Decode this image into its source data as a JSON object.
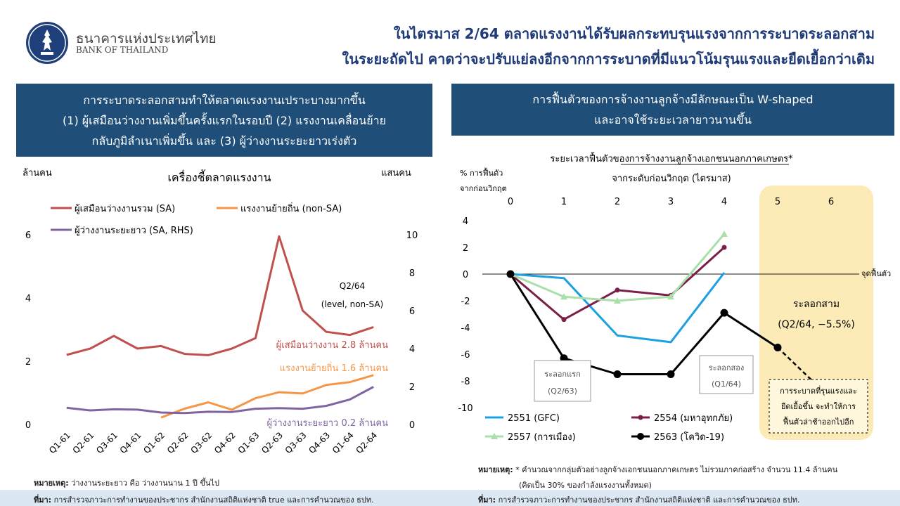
{
  "header": {
    "org_thai": "ธนาคารแห่งประเทศไทย",
    "org_en": "BANK OF THAILAND",
    "headline_line1": "ในไตรมาส 2/64 ตลาดแรงงานได้รับผลกระทบรุนแรงจากการระบาดระลอกสาม",
    "headline_line2": "ในระยะถัดไป คาดว่าจะปรับแย่ลงอีกจากการระบาดที่มีแนวโน้มรุนแรงและยืดเยื้อกว่าเดิม"
  },
  "left_banner": {
    "line1": "การระบาดระลอกสามทำให้ตลาดแรงงานเปราะบางมากขึ้น",
    "line2": "(1) ผู้เสมือนว่างงานเพิ่มขึ้นครั้งแรกในรอบปี (2) แรงงานเคลื่อนย้าย",
    "line3": "กลับภูมิลำเนาเพิ่มขึ้น และ (3) ผู้ว่างงานระยะยาวเร่งตัว"
  },
  "right_banner": {
    "line1": "การฟื้นตัวของการจ้างงานลูกจ้างมีลักษณะเป็น W-shaped",
    "line2": "และอาจใช้ระยะเวลายาวนานขึ้น"
  },
  "colors": {
    "navy": "#1f4e79",
    "headline": "#1e3a78",
    "red_series": "#c0504d",
    "orange_series": "#f79646",
    "purple_series": "#8064a2",
    "gfc": "#1ba1e2",
    "flood": "#7b1e48",
    "politics": "#a9dfa9",
    "covid": "#000000",
    "forecast_zone": "#fcebb6"
  },
  "chart_data": [
    {
      "type": "line",
      "title": "เครื่องชี้ตลาดแรงงาน",
      "ylabel_left": "ล้านคน",
      "ylabel_right": "แสนคน",
      "ylim": [
        0,
        6
      ],
      "ylim_right": [
        0,
        10
      ],
      "yticks_left": [
        0,
        2,
        4,
        6
      ],
      "yticks_right": [
        0,
        2,
        4,
        6,
        8,
        10
      ],
      "categories": [
        "Q1-61",
        "Q2-61",
        "Q3-61",
        "Q4-61",
        "Q1-62",
        "Q2-62",
        "Q3-62",
        "Q4-62",
        "Q1-63",
        "Q2-63",
        "Q3-63",
        "Q4-63",
        "Q1-64",
        "Q2-64"
      ],
      "series": [
        {
          "name": "ผู้เสมือนว่างงานรวม (SA)",
          "axis": "left",
          "color": "#c0504d",
          "values": [
            2.2,
            2.4,
            2.8,
            2.4,
            2.48,
            2.23,
            2.19,
            2.4,
            2.73,
            5.95,
            3.6,
            2.93,
            2.83,
            3.08
          ]
        },
        {
          "name": "แรงงานย้ายถิ่น (non-SA)",
          "axis": "left",
          "color": "#f79646",
          "values": [
            null,
            null,
            null,
            null,
            0.22,
            0.5,
            0.7,
            0.47,
            0.83,
            1.02,
            0.98,
            1.25,
            1.34,
            1.56
          ]
        },
        {
          "name": "ผู้ว่างงานระยะยาว (SA, RHS)",
          "axis": "right",
          "color": "#8064a2",
          "values": [
            0.88,
            0.74,
            0.8,
            0.78,
            0.63,
            0.6,
            0.67,
            0.66,
            0.83,
            0.86,
            0.83,
            0.98,
            1.32,
            1.98
          ]
        }
      ],
      "annotations": {
        "q2_64_line1": "Q2/64",
        "q2_64_line2": "(level, non-SA)",
        "red_label": "ผู้เสมือนว่างงาน 2.8 ล้านคน",
        "orange_label": "แรงงานย้ายถิ่น 1.6 ล้านคน",
        "purple_label": "ผู้ว่างงานระยะยาว 0.2 ล้านคน"
      },
      "legend_placement": "top-left"
    },
    {
      "type": "line",
      "title": "ระยะเวลาฟื้นตัวของการจ้างงานลูกจ้างเอกชนนอกภาคเกษตร*",
      "title_underlined": "ลูกจ้างเอกชนนอกภาคเกษตร",
      "subtitle": "จากระดับก่อนวิกฤต  (ไตรมาส)",
      "ylabel_line1": "% การฟื้นตัว",
      "ylabel_line2": "จากก่อนวิกฤต",
      "x": [
        0,
        1,
        2,
        3,
        4,
        5,
        6
      ],
      "ylim": [
        -10,
        4
      ],
      "yticks": [
        4,
        2,
        0,
        -2,
        -4,
        -6,
        -8,
        -10
      ],
      "zero_line_label": "จุดฟื้นตัว",
      "series": [
        {
          "name": "2551 (GFC)",
          "color": "#1ba1e2",
          "marker": "none",
          "x": [
            0,
            1,
            2,
            3,
            4
          ],
          "values": [
            0.0,
            -0.3,
            -4.6,
            -5.1,
            0.1
          ]
        },
        {
          "name": "2554 (มหาอุทกภัย)",
          "color": "#7b1e48",
          "marker": "circle",
          "x": [
            0,
            1,
            2,
            3,
            4
          ],
          "values": [
            0.0,
            -3.4,
            -1.2,
            -1.6,
            2.0
          ]
        },
        {
          "name": "2557 (การเมือง)",
          "color": "#a9dfa9",
          "marker": "triangle",
          "x": [
            0,
            1,
            2,
            3,
            4
          ],
          "values": [
            0.0,
            -1.7,
            -2.0,
            -1.7,
            3.0
          ]
        },
        {
          "name": "2563 (โควิด-19)",
          "color": "#000000",
          "marker": "circle",
          "x": [
            0,
            1,
            2,
            3,
            4,
            5
          ],
          "values": [
            0.0,
            -6.3,
            -7.5,
            -7.5,
            -2.9,
            -5.5
          ]
        }
      ],
      "forecast": {
        "from_x": 5,
        "from_y": -5.5,
        "to_x": 6,
        "to_y": -9.3
      },
      "callouts": {
        "wave1_line1": "ระลอกแรก",
        "wave1_line2": "(Q2/63)",
        "wave2_line1": "ระลอกสอง",
        "wave2_line2": "(Q1/64)",
        "wave3_line1": "ระลอกสาม",
        "wave3_line2": "(Q2/64, −5.5%)",
        "box_line1": "การระบาดที่รุนแรงและ",
        "box_line2": "ยืดเยื้อขึ้น จะทำให้การ",
        "box_line3": "ฟื้นตัวล่าช้าออกไปอีก"
      },
      "legend_placement": "bottom"
    }
  ],
  "notes": {
    "left_note_label": "หมายเหตุ:",
    "left_note_text": "ว่างงานระยะยาว คือ ว่างงานนาน 1 ปี ขึ้นไป",
    "left_source_label": "ที่มา:",
    "left_source_text": "การสำรวจภาวะการทำงานของประชากร สำนักงานสถิติแห่งชาติ true และการคำนวณของ ธปท.",
    "right_note_label": "หมายเหตุ:",
    "right_note_text1": "* คำนวณจากกลุ่มตัวอย่างลูกจ้างเอกชนนอกภาคเกษตร ไม่รวมภาคก่อสร้าง จำนวน 11.4 ล้านคน",
    "right_note_text2": "(คิดเป็น 30% ของกำลังแรงงานทั้งหมด)",
    "right_source_label": "ที่มา:",
    "right_source_text": "การสำรวจภาวะการทำงานของประชากร สำนักงานสถิติแห่งชาติ และการคำนวณของ ธปท."
  }
}
